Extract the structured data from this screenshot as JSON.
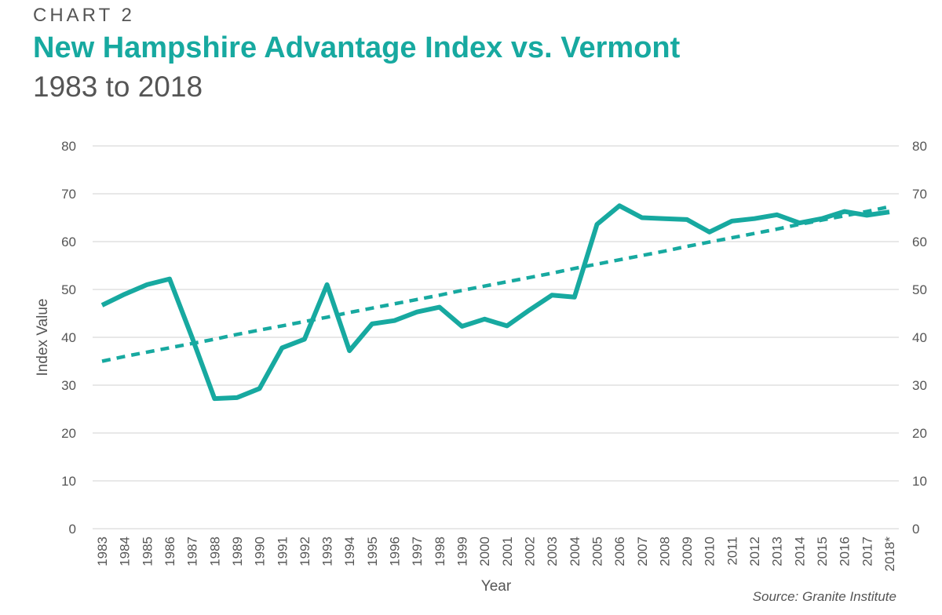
{
  "header": {
    "kicker": "CHART 2",
    "title": "New Hampshire Advantage Index vs. Vermont",
    "subtitle": "1983 to 2018"
  },
  "source": "Source: Granite Institute",
  "colors": {
    "series": "#17a9a0",
    "grid": "#d9d9d9",
    "text": "#555555"
  },
  "chart_data": {
    "type": "line",
    "xlabel": "Year",
    "ylabel": "Index Value",
    "ylim": [
      0,
      80
    ],
    "yticks": [
      0,
      10,
      20,
      30,
      40,
      50,
      60,
      70,
      80
    ],
    "y2ticks": [
      0,
      10,
      20,
      30,
      40,
      50,
      60,
      70,
      80
    ],
    "grid": true,
    "categories": [
      "1983",
      "1984",
      "1985",
      "1986",
      "1987",
      "1988",
      "1989",
      "1990",
      "1991",
      "1992",
      "1993",
      "1994",
      "1995",
      "1996",
      "1997",
      "1998",
      "1999",
      "2000",
      "2001",
      "2002",
      "2003",
      "2004",
      "2005",
      "2006",
      "2007",
      "2008",
      "2009",
      "2010",
      "2011",
      "2012",
      "2013",
      "2014",
      "2015",
      "2016",
      "2017",
      "2018*"
    ],
    "series": [
      {
        "values": [
          46.7,
          49.0,
          51.0,
          52.2,
          40.0,
          27.2,
          27.4,
          29.3,
          37.8,
          39.6,
          51.0,
          37.2,
          42.8,
          43.5,
          45.3,
          46.3,
          42.3,
          43.8,
          42.4,
          45.7,
          48.8,
          48.4,
          63.6,
          67.5,
          65.0,
          64.8,
          64.6,
          62.0,
          64.3,
          64.8,
          65.6,
          63.9,
          64.8,
          66.3,
          65.5,
          66.2
        ],
        "style": "solid"
      },
      {
        "values": [
          35.0,
          36.0,
          36.9,
          37.8,
          38.7,
          39.6,
          40.6,
          41.5,
          42.4,
          43.3,
          44.2,
          45.2,
          46.1,
          47.0,
          47.9,
          48.8,
          49.8,
          50.7,
          51.6,
          52.5,
          53.4,
          54.4,
          55.3,
          56.2,
          57.1,
          58.0,
          59.0,
          59.9,
          60.8,
          61.7,
          62.6,
          63.6,
          64.5,
          65.4,
          66.3,
          67.3
        ],
        "style": "dashed"
      }
    ]
  }
}
